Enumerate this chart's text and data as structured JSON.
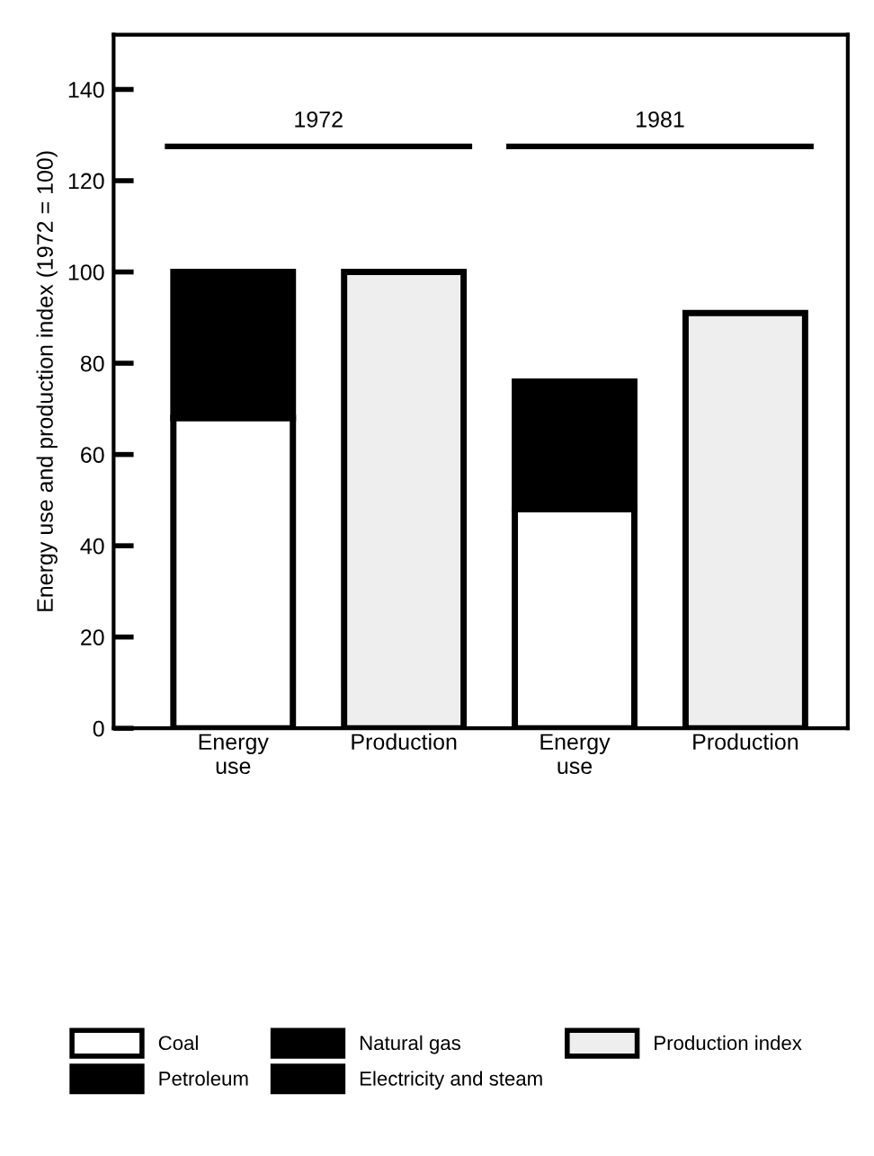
{
  "chart_data": {
    "type": "bar",
    "stacked": true,
    "ylabel": "Energy use and production index (1972 = 100)",
    "categories": [
      "Energy\nuse",
      "Production",
      "Energy\nuse",
      "Production"
    ],
    "series": [
      {
        "name": "Coal",
        "color": "#ffffff",
        "values": [
          68,
          null,
          48,
          null
        ]
      },
      {
        "name": "Petroleum",
        "color": "#000000",
        "values": [
          32,
          null,
          28,
          null
        ]
      },
      {
        "name": "Natural gas",
        "color": "#000000",
        "values": [
          null,
          null,
          null,
          null
        ]
      },
      {
        "name": "Electricity and steam",
        "color": "#000000",
        "values": [
          null,
          null,
          null,
          null
        ]
      },
      {
        "name": "Production index",
        "color": "#eeeeee",
        "values": [
          null,
          100,
          null,
          91
        ]
      }
    ],
    "ylim": [
      0,
      152
    ],
    "yticks": [
      0,
      20,
      40,
      60,
      80,
      100,
      120,
      140
    ],
    "grid": false,
    "legend": "bottom",
    "annotations": [
      "1972",
      "1981"
    ]
  }
}
